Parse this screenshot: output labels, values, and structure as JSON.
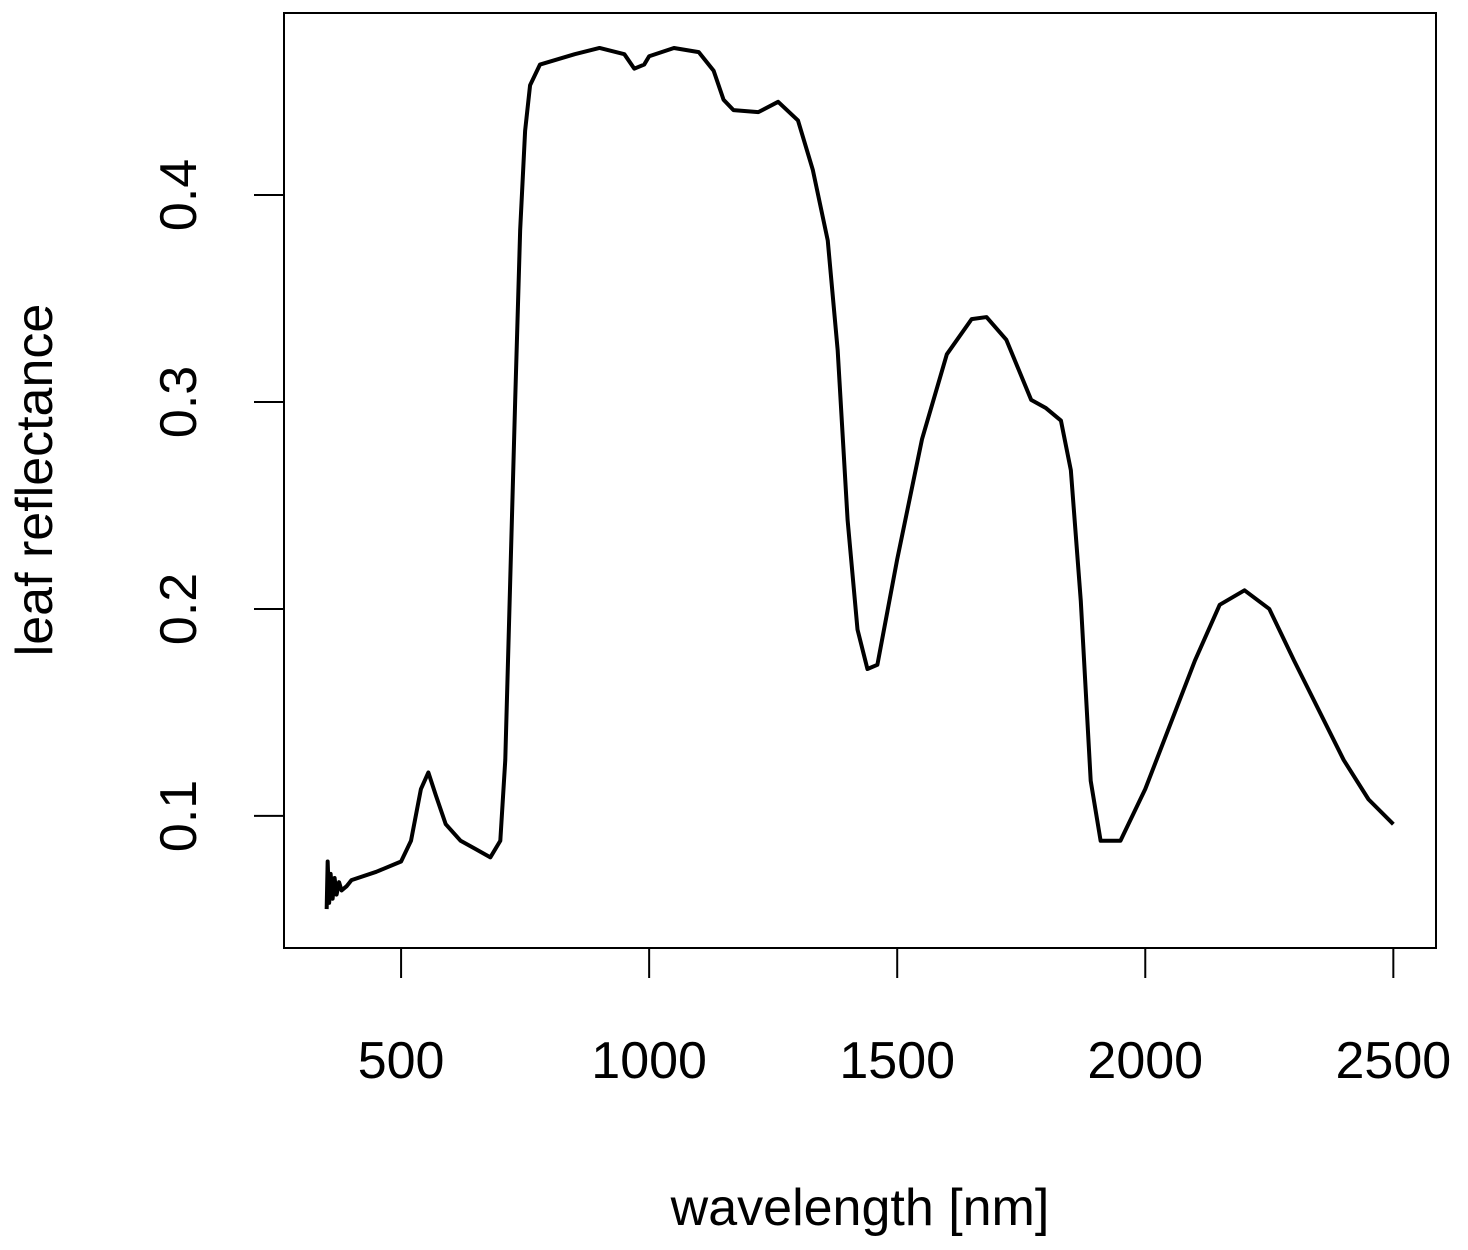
{
  "chart_data": {
    "type": "line",
    "x_label": "wavelength [nm]",
    "y_label": "leaf reflectance",
    "x": [
      350,
      352,
      355,
      358,
      362,
      366,
      370,
      375,
      380,
      390,
      400,
      450,
      500,
      520,
      540,
      555,
      570,
      590,
      620,
      650,
      680,
      700,
      710,
      720,
      730,
      740,
      750,
      760,
      780,
      850,
      900,
      950,
      970,
      990,
      1000,
      1050,
      1100,
      1130,
      1150,
      1170,
      1220,
      1260,
      1300,
      1330,
      1360,
      1380,
      1400,
      1420,
      1440,
      1460,
      1500,
      1550,
      1600,
      1650,
      1680,
      1720,
      1770,
      1800,
      1830,
      1850,
      1870,
      1890,
      1910,
      1950,
      2000,
      2100,
      2150,
      2200,
      2250,
      2300,
      2400,
      2450,
      2500
    ],
    "series": [
      {
        "color": "#000000",
        "values": [
          0.055,
          0.078,
          0.058,
          0.072,
          0.06,
          0.07,
          0.062,
          0.068,
          0.064,
          0.066,
          0.069,
          0.073,
          0.078,
          0.088,
          0.113,
          0.121,
          0.11,
          0.096,
          0.088,
          0.084,
          0.08,
          0.088,
          0.127,
          0.214,
          0.301,
          0.383,
          0.431,
          0.453,
          0.463,
          0.468,
          0.471,
          0.468,
          0.461,
          0.463,
          0.467,
          0.471,
          0.469,
          0.46,
          0.446,
          0.441,
          0.44,
          0.445,
          0.436,
          0.412,
          0.378,
          0.325,
          0.243,
          0.19,
          0.171,
          0.173,
          0.224,
          0.282,
          0.323,
          0.34,
          0.341,
          0.33,
          0.301,
          0.297,
          0.291,
          0.267,
          0.204,
          0.117,
          0.088,
          0.088,
          0.113,
          0.175,
          0.202,
          0.209,
          0.2,
          0.175,
          0.127,
          0.108,
          0.096
        ]
      }
    ],
    "xlim": [
      264,
      2586
    ],
    "ylim": [
      0.0362,
      0.4879
    ],
    "xticks": [
      500,
      1000,
      1500,
      2000,
      2500
    ],
    "yticks": [
      0.1,
      0.2,
      0.3,
      0.4
    ]
  }
}
